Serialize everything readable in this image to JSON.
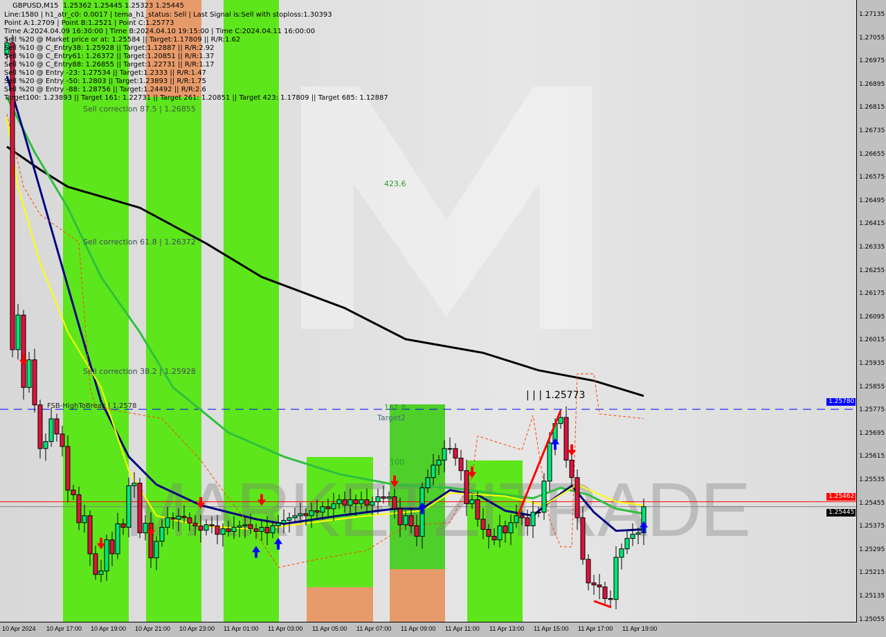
{
  "header": {
    "symbol": "GBPUSD,M15",
    "ohlc": "1.25362 1.25445 1.25323 1.25445",
    "lines": [
      "Line:1580 | h1_atr_c0: 0.0017 | tema_h1_status: Sell | Last Signal is:Sell with stoploss:1.30393",
      "Point A:1.2709 | Point B:1.2521 | Point C:1.25773",
      "Time A:2024.04.09 16:30:00 | Time B:2024.04.10 19:15:00 | Time C:2024.04.11 16:00:00",
      "Sell %20 @ Market price or at: 1.25584 || Target:1.17809 || R/R:1.62",
      "Sell %10 @ C_Entry38: 1.25928 || Target:1.12887 || R/R:2.92",
      "Sell %10 @ C_Entry61: 1.26372 || Target:1.20851 || R/R:1.37",
      "Sell %10 @ C_Entry88: 1.26855 || Target:1.22731 || R/R:1.17",
      "Sell %10 @ Entry -23: 1.27534 || Target:1.2333 || R/R:1.47",
      "Sell %20 @ Entry -50: 1.2803 || Target:1.23893 || R/R:1.75",
      "Sell %20 @ Entry -88: 1.28756 || Target:1.24492 || R/R:2.6",
      "Target100: 1.23893 || Target 161: 1.22731 || Target 261: 1.20851 || Target 423: 1.17809 || Target 685: 1.12887"
    ]
  },
  "annotations": {
    "sell_corr_875": "Sell correction 87.5 | 1.26855",
    "sell_corr_618": "Sell correction 61.8 | 1.26372",
    "sell_corr_382": "Sell correction 38.2 | 1.25928",
    "fsb": "FSB-HighToBreak | 1.2578",
    "fib_4236": "423.6",
    "fib_1618": "161.8",
    "target2": "Target2",
    "fib_100": "100",
    "point_c": "| | | 1.25773",
    "watermark": "MARKETZITRADE"
  },
  "price_tags": {
    "blue_line": "1.25780",
    "red_line": "1.25462",
    "current": "1.25445"
  },
  "colors": {
    "bull": "#00e676",
    "bear": "#dc143c",
    "band_green": "#5ee61c",
    "band_orange": "#e89b6a",
    "ma_black": "#000000",
    "ma_green": "#2fbf3f",
    "ma_navy": "#000080",
    "ma_yellow": "#ffff00",
    "level_blue": "#0000ff",
    "level_red": "#ff0000"
  },
  "chart_data": {
    "type": "candlestick",
    "symbol": "GBPUSD",
    "timeframe": "M15",
    "ylim": [
      1.25015,
      1.27175
    ],
    "yticks": [
      "1.27135",
      "1.27055",
      "1.26975",
      "1.26895",
      "1.26815",
      "1.26735",
      "1.26655",
      "1.26575",
      "1.26495",
      "1.26415",
      "1.26335",
      "1.26255",
      "1.26175",
      "1.26095",
      "1.26015",
      "1.25935",
      "1.25855",
      "1.25775",
      "1.25695",
      "1.25615",
      "1.25535",
      "1.25455",
      "1.25375",
      "1.25295",
      "1.25215",
      "1.25135",
      "1.25055"
    ],
    "xticks": [
      "10 Apr 2024",
      "10 Apr 17:00",
      "10 Apr 19:00",
      "10 Apr 21:00",
      "10 Apr 23:00",
      "11 Apr 01:00",
      "11 Apr 03:00",
      "11 Apr 05:00",
      "11 Apr 07:00",
      "11 Apr 09:00",
      "11 Apr 11:00",
      "11 Apr 13:00",
      "11 Apr 15:00",
      "11 Apr 17:00",
      "11 Apr 19:00"
    ],
    "first_open": 1.27,
    "close": [
      1.2704,
      1.25985,
      1.26104,
      1.25855,
      1.2595,
      1.25795,
      1.25645,
      1.25669,
      1.25747,
      1.25695,
      1.25652,
      1.25502,
      1.25486,
      1.2539,
      1.25414,
      1.25283,
      1.25212,
      1.25224,
      1.25331,
      1.25283,
      1.25386,
      1.25374,
      1.25517,
      1.25526,
      1.25355,
      1.25388,
      1.25269,
      1.25326,
      1.25374,
      1.25407,
      1.25402,
      1.25412,
      1.25407,
      1.25388,
      1.25379,
      1.25364,
      1.25383,
      1.25379,
      1.2535,
      1.25369,
      1.2536,
      1.25374,
      1.25379,
      1.25383,
      1.25369,
      1.2536,
      1.25374,
      1.25355,
      1.25379,
      1.25388,
      1.25398,
      1.25407,
      1.25414,
      1.25421,
      1.25414,
      1.25431,
      1.25426,
      1.25445,
      1.25438,
      1.25455,
      1.25469,
      1.2545,
      1.25469,
      1.25455,
      1.25469,
      1.2545,
      1.25462,
      1.25479,
      1.25474,
      1.25479,
      1.25438,
      1.25383,
      1.25414,
      1.25379,
      1.25343,
      1.2551,
      1.25545,
      1.25588,
      1.25605,
      1.25645,
      1.25645,
      1.25612,
      1.25569,
      1.25455,
      1.25469,
      1.25402,
      1.25367,
      1.25343,
      1.25331,
      1.25379,
      1.25355,
      1.2539,
      1.25414,
      1.25407,
      1.25379,
      1.25426,
      1.25426,
      1.25533,
      1.25664,
      1.25731,
      1.25752,
      1.25605,
      1.25545,
      1.25407,
      1.25264,
      1.25183,
      1.25176,
      1.25169,
      1.25129,
      1.25126,
      1.25271,
      1.253,
      1.25336,
      1.2535,
      1.25355,
      1.25445
    ],
    "indicators": [
      {
        "color": "#000000",
        "points": [
          [
            0,
            1.26683
          ],
          [
            6,
            1.26604
          ],
          [
            11,
            1.26545
          ],
          [
            24,
            1.26473
          ],
          [
            36,
            1.2635
          ],
          [
            46,
            1.26235
          ],
          [
            61,
            1.26128
          ],
          [
            72,
            1.26021
          ],
          [
            86,
            1.25974
          ],
          [
            96,
            1.25914
          ],
          [
            106,
            1.25878
          ],
          [
            115,
            1.25826
          ]
        ]
      },
      {
        "color": "#2fbf3f",
        "points": [
          [
            0,
            1.26854
          ],
          [
            5,
            1.26664
          ],
          [
            11,
            1.26473
          ],
          [
            17,
            1.26235
          ],
          [
            24,
            1.26045
          ],
          [
            30,
            1.25855
          ],
          [
            40,
            1.257
          ],
          [
            50,
            1.25617
          ],
          [
            60,
            1.25557
          ],
          [
            70,
            1.25521
          ],
          [
            80,
            1.2551
          ],
          [
            90,
            1.25486
          ],
          [
            95,
            1.25474
          ],
          [
            100,
            1.2551
          ],
          [
            105,
            1.25486
          ],
          [
            110,
            1.25438
          ],
          [
            115,
            1.25421
          ]
        ]
      },
      {
        "color": "#000080",
        "points": [
          [
            0,
            1.26926
          ],
          [
            3,
            1.26735
          ],
          [
            8,
            1.26402
          ],
          [
            13,
            1.26069
          ],
          [
            17,
            1.25807
          ],
          [
            22,
            1.25617
          ],
          [
            27,
            1.25521
          ],
          [
            35,
            1.2545
          ],
          [
            45,
            1.25402
          ],
          [
            50,
            1.25386
          ],
          [
            60,
            1.25414
          ],
          [
            70,
            1.25438
          ],
          [
            75,
            1.25438
          ],
          [
            80,
            1.25502
          ],
          [
            85,
            1.25486
          ],
          [
            90,
            1.25431
          ],
          [
            95,
            1.25414
          ],
          [
            98,
            1.25462
          ],
          [
            102,
            1.25517
          ],
          [
            106,
            1.25426
          ],
          [
            110,
            1.25362
          ],
          [
            115,
            1.25367
          ]
        ]
      },
      {
        "color": "#ffff00",
        "points": [
          [
            0,
            1.26783
          ],
          [
            2,
            1.26545
          ],
          [
            6,
            1.26283
          ],
          [
            11,
            1.26045
          ],
          [
            17,
            1.25855
          ],
          [
            22,
            1.25569
          ],
          [
            27,
            1.25414
          ],
          [
            35,
            1.25379
          ],
          [
            45,
            1.25367
          ],
          [
            55,
            1.2539
          ],
          [
            65,
            1.25414
          ],
          [
            75,
            1.25431
          ],
          [
            80,
            1.25493
          ],
          [
            90,
            1.25481
          ],
          [
            97,
            1.2545
          ],
          [
            103,
            1.25521
          ],
          [
            110,
            1.25462
          ],
          [
            115,
            1.2545
          ]
        ]
      },
      {
        "color": "#ff4500",
        "dashed": true,
        "points": [
          [
            0,
            1.26795
          ],
          [
            3,
            1.26545
          ],
          [
            6,
            1.2645
          ],
          [
            13,
            1.26354
          ],
          [
            15,
            1.25855
          ],
          [
            16,
            1.25788
          ],
          [
            28,
            1.25748
          ],
          [
            35,
            1.25605
          ],
          [
            40,
            1.25474
          ],
          [
            45,
            1.25355
          ],
          [
            49,
            1.25236
          ],
          [
            55,
            1.2526
          ],
          [
            65,
            1.25295
          ],
          [
            72,
            1.25379
          ],
          [
            80,
            1.2539
          ],
          [
            84,
            1.25545
          ],
          [
            85,
            1.25688
          ],
          [
            93,
            1.2564
          ],
          [
            95,
            1.25759
          ],
          [
            98,
            1.254
          ],
          [
            100,
            1.25307
          ],
          [
            102,
            1.25307
          ],
          [
            103,
            1.25902
          ],
          [
            106,
            1.25902
          ],
          [
            107,
            1.25764
          ],
          [
            115,
            1.25748
          ]
        ]
      }
    ],
    "levels": [
      {
        "price": 1.2578,
        "color": "#0000ff",
        "style": "dashed"
      },
      {
        "price": 1.25462,
        "color": "#ff0000",
        "style": "solid"
      },
      {
        "price": 1.25445,
        "color": "#808080",
        "style": "solid"
      }
    ],
    "signals": {
      "sell_arrows": [
        3,
        17,
        26,
        35,
        46,
        70,
        84,
        102
      ],
      "buy_arrows": [
        45,
        49,
        75,
        99,
        115
      ]
    }
  }
}
